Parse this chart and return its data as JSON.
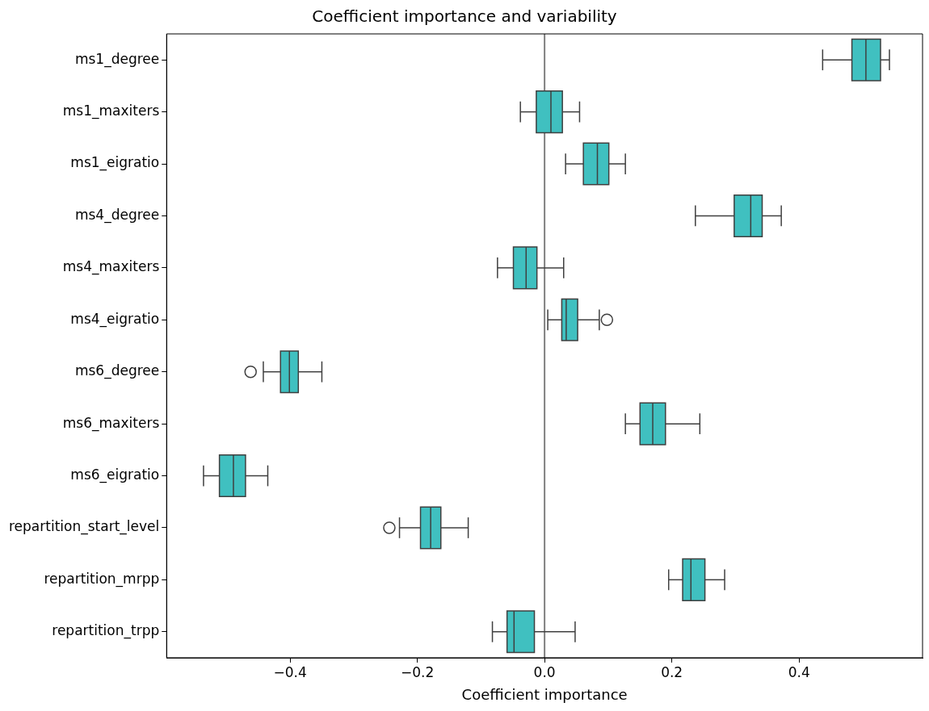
{
  "chart_data": {
    "type": "box",
    "orientation": "horizontal",
    "title": "Coefficient importance and variability",
    "xlabel": "Coefficient importance",
    "categories": [
      "ms1_degree",
      "ms1_maxiters",
      "ms1_eigratio",
      "ms4_degree",
      "ms4_maxiters",
      "ms4_eigratio",
      "ms6_degree",
      "ms6_maxiters",
      "ms6_eigratio",
      "repartition_start_level",
      "repartition_mrpp",
      "repartition_trpp"
    ],
    "xlim": [
      -0.594,
      0.594
    ],
    "xticks": [
      {
        "value": -0.4,
        "label": "−0.4"
      },
      {
        "value": -0.2,
        "label": "−0.2"
      },
      {
        "value": 0,
        "label": "0.0"
      },
      {
        "value": 0.2,
        "label": "0.2"
      },
      {
        "value": 0.4,
        "label": "0.4"
      }
    ],
    "ref_lines": [
      {
        "axis": "x",
        "value": 0,
        "color": "#808080"
      }
    ],
    "series": [
      {
        "color": "#40c0c0",
        "boxes": [
          {
            "low": 0.437,
            "q1": 0.483,
            "median": 0.505,
            "q3": 0.528,
            "high": 0.542
          },
          {
            "low": -0.038,
            "q1": -0.013,
            "median": 0.01,
            "q3": 0.028,
            "high": 0.055
          },
          {
            "low": 0.033,
            "q1": 0.061,
            "median": 0.083,
            "q3": 0.101,
            "high": 0.127
          },
          {
            "low": 0.237,
            "q1": 0.298,
            "median": 0.324,
            "q3": 0.342,
            "high": 0.372
          },
          {
            "low": -0.074,
            "q1": -0.049,
            "median": -0.029,
            "q3": -0.012,
            "high": 0.03
          },
          {
            "low": 0.005,
            "q1": 0.027,
            "median": 0.034,
            "q3": 0.052,
            "high": 0.086,
            "outliers": [
              0.098
            ]
          },
          {
            "low": -0.442,
            "q1": -0.415,
            "median": -0.401,
            "q3": -0.387,
            "high": -0.35,
            "outliers": [
              -0.462
            ]
          },
          {
            "low": 0.127,
            "q1": 0.15,
            "median": 0.17,
            "q3": 0.19,
            "high": 0.244
          },
          {
            "low": -0.536,
            "q1": -0.511,
            "median": -0.489,
            "q3": -0.47,
            "high": -0.435
          },
          {
            "low": -0.228,
            "q1": -0.195,
            "median": -0.179,
            "q3": -0.163,
            "high": -0.12,
            "outliers": [
              -0.244
            ]
          },
          {
            "low": 0.195,
            "q1": 0.217,
            "median": 0.23,
            "q3": 0.252,
            "high": 0.283
          },
          {
            "low": -0.082,
            "q1": -0.059,
            "median": -0.048,
            "q3": -0.016,
            "high": 0.048
          }
        ]
      }
    ]
  }
}
